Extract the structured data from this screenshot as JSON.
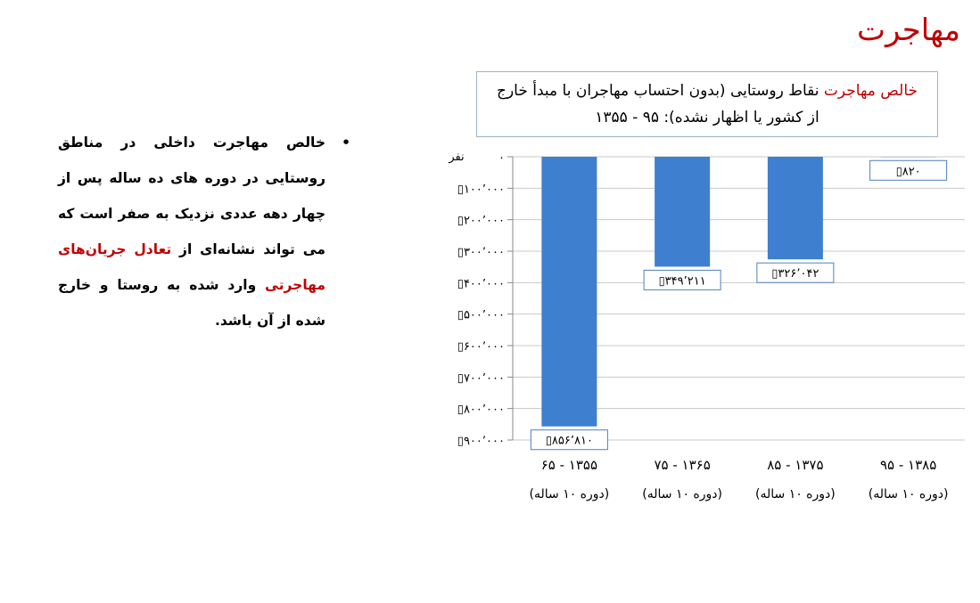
{
  "slide": {
    "title": "مهاجرت",
    "bullet": {
      "part1": "خالص مهاجرت داخلی در مناطق روستایی در دوره های ده ساله پس از چهار دهه عددی نزدیک به صفر است که می تواند نشانه‌ای از ",
      "highlight": "تعادل جریان‌های مهاجرتی",
      "part2": " وارد شده به روستا و خارج شده از آن باشد."
    }
  },
  "chart_title": {
    "highlight": "خالص مهاجرت",
    "line1": " نقاط روستایی (بدون احتساب مهاجران با مبدأ خارج",
    "line2": "از کشور یا اظهار نشده): ۹۵ - ۱۳۵۵"
  },
  "chart_data": {
    "type": "bar",
    "title": "خالص مهاجرت نقاط روستایی (بدون احتساب مهاجران با مبدأ خارج از کشور یا اظهار نشده): ۹۵ - ۱۳۵۵",
    "ylabel": "نفر",
    "ylim": [
      -900000,
      0
    ],
    "grid": true,
    "bar_color": "#3f7fcf",
    "yticks": [
      0,
      -100000,
      -200000,
      -300000,
      -400000,
      -500000,
      -600000,
      -700000,
      -800000,
      -900000
    ],
    "ytick_labels": [
      "۰",
      "۱۰۰٬۰۰۰",
      "۲۰۰٬۰۰۰",
      "۳۰۰٬۰۰۰",
      "۴۰۰٬۰۰۰",
      "۵۰۰٬۰۰۰",
      "۶۰۰٬۰۰۰",
      "۷۰۰٬۰۰۰",
      "۸۰۰٬۰۰۰",
      "۹۰۰٬۰۰۰"
    ],
    "categories": [
      "۶۵ - ۱۳۵۵",
      "۷۵ - ۱۳۶۵",
      "۸۵ - ۱۳۷۵",
      "۹۵ - ۱۳۸۵"
    ],
    "category_sublabels": [
      "(دوره ۱۰ ساله)",
      "(دوره ۱۰ ساله)",
      "(دوره ۱۰ ساله)",
      "(دوره ۱۰ ساله)"
    ],
    "values": [
      -856810,
      -349211,
      -326042,
      -820
    ],
    "data_labels": [
      "۸۵۶٬۸۱۰",
      "۳۴۹٬۲۱۱",
      "۳۲۶٬۰۴۲",
      "۸۲۰"
    ]
  }
}
